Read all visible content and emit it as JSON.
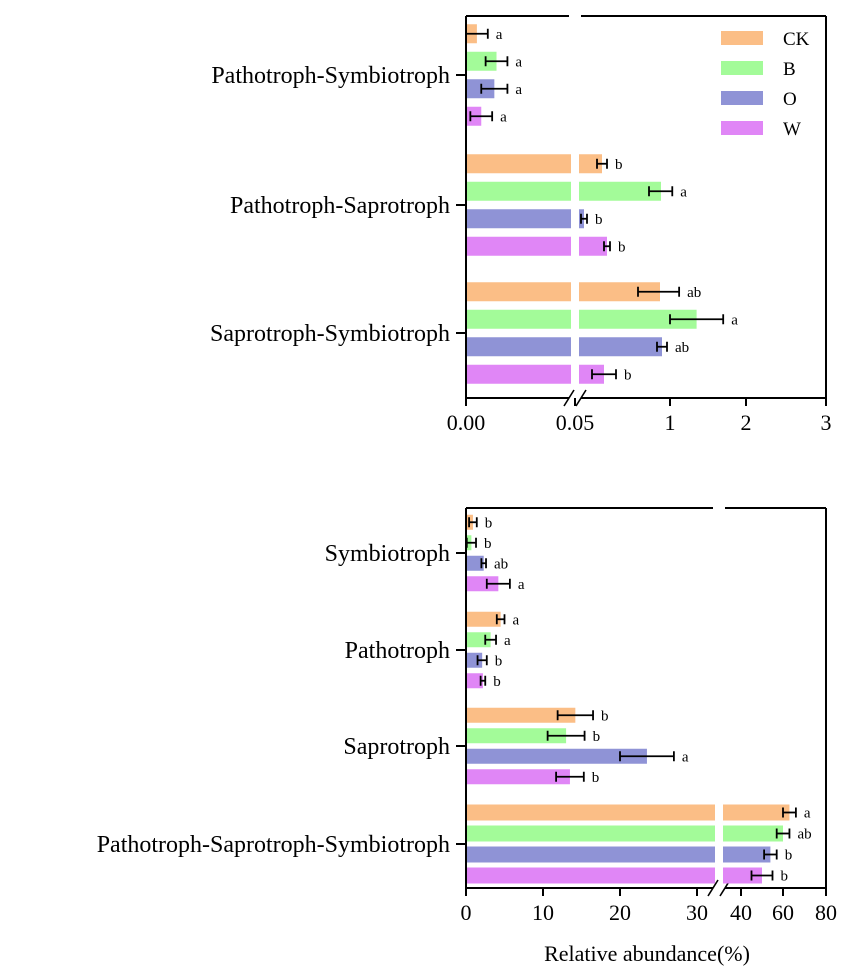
{
  "colors": {
    "CK": "#FBBE86",
    "B": "#A3FB99",
    "O": "#8F93D6",
    "W": "#E086F6",
    "axis": "#000000"
  },
  "legend": {
    "position": "top-right",
    "items": [
      "CK",
      "B",
      "O",
      "W"
    ]
  },
  "xlabel": "Relative abundance(%)",
  "chart_data": [
    {
      "type": "bar",
      "orientation": "horizontal",
      "axis_break": "between 0.05 and 1",
      "xticks": [
        "0.00",
        "0.05",
        "1",
        "2",
        "3"
      ],
      "xlim": [
        0,
        3
      ],
      "categories": [
        "Pathotroph-Symbiotroph",
        "Pathotroph-Saprotroph",
        "Saprotroph-Symbiotroph"
      ],
      "series": [
        {
          "name": "CK",
          "values": [
            0.005,
            0.32,
            0.9
          ],
          "errors": [
            0.005,
            0.05,
            0.22
          ],
          "labels": [
            "a",
            "b",
            "ab"
          ]
        },
        {
          "name": "B",
          "values": [
            0.014,
            0.91,
            1.35
          ],
          "errors": [
            0.005,
            0.12,
            0.35
          ],
          "labels": [
            "a",
            "a",
            "a"
          ]
        },
        {
          "name": "O",
          "values": [
            0.013,
            0.14,
            0.92
          ],
          "errors": [
            0.006,
            0.03,
            0.05
          ],
          "labels": [
            "a",
            "b",
            "ab"
          ]
        },
        {
          "name": "W",
          "values": [
            0.007,
            0.37,
            0.34
          ],
          "errors": [
            0.005,
            0.03,
            0.12
          ],
          "labels": [
            "a",
            "b",
            "b"
          ]
        }
      ]
    },
    {
      "type": "bar",
      "orientation": "horizontal",
      "axis_break": "between 30 and 40",
      "xticks": [
        "0",
        "10",
        "20",
        "30",
        "40",
        "60",
        "80"
      ],
      "xlim": [
        0,
        80
      ],
      "categories": [
        "Symbiotroph",
        "Pathotroph",
        "Saprotroph",
        "Pathotroph-Saprotroph-Symbiotroph"
      ],
      "series": [
        {
          "name": "CK",
          "values": [
            0.9,
            4.5,
            14.2,
            63
          ],
          "errors": [
            0.5,
            0.5,
            2.3,
            3
          ],
          "labels": [
            "b",
            "a",
            "b",
            "a"
          ]
        },
        {
          "name": "B",
          "values": [
            0.7,
            3.2,
            13.0,
            60
          ],
          "errors": [
            0.6,
            0.7,
            2.4,
            3
          ],
          "labels": [
            "b",
            "a",
            "b",
            "ab"
          ]
        },
        {
          "name": "O",
          "values": [
            2.3,
            2.1,
            23.5,
            54
          ],
          "errors": [
            0.3,
            0.6,
            3.5,
            3
          ],
          "labels": [
            "ab",
            "b",
            "a",
            "b"
          ]
        },
        {
          "name": "W",
          "values": [
            4.2,
            2.2,
            13.5,
            50
          ],
          "errors": [
            1.5,
            0.3,
            1.8,
            5
          ],
          "labels": [
            "a",
            "b",
            "b",
            "b"
          ]
        }
      ]
    }
  ]
}
